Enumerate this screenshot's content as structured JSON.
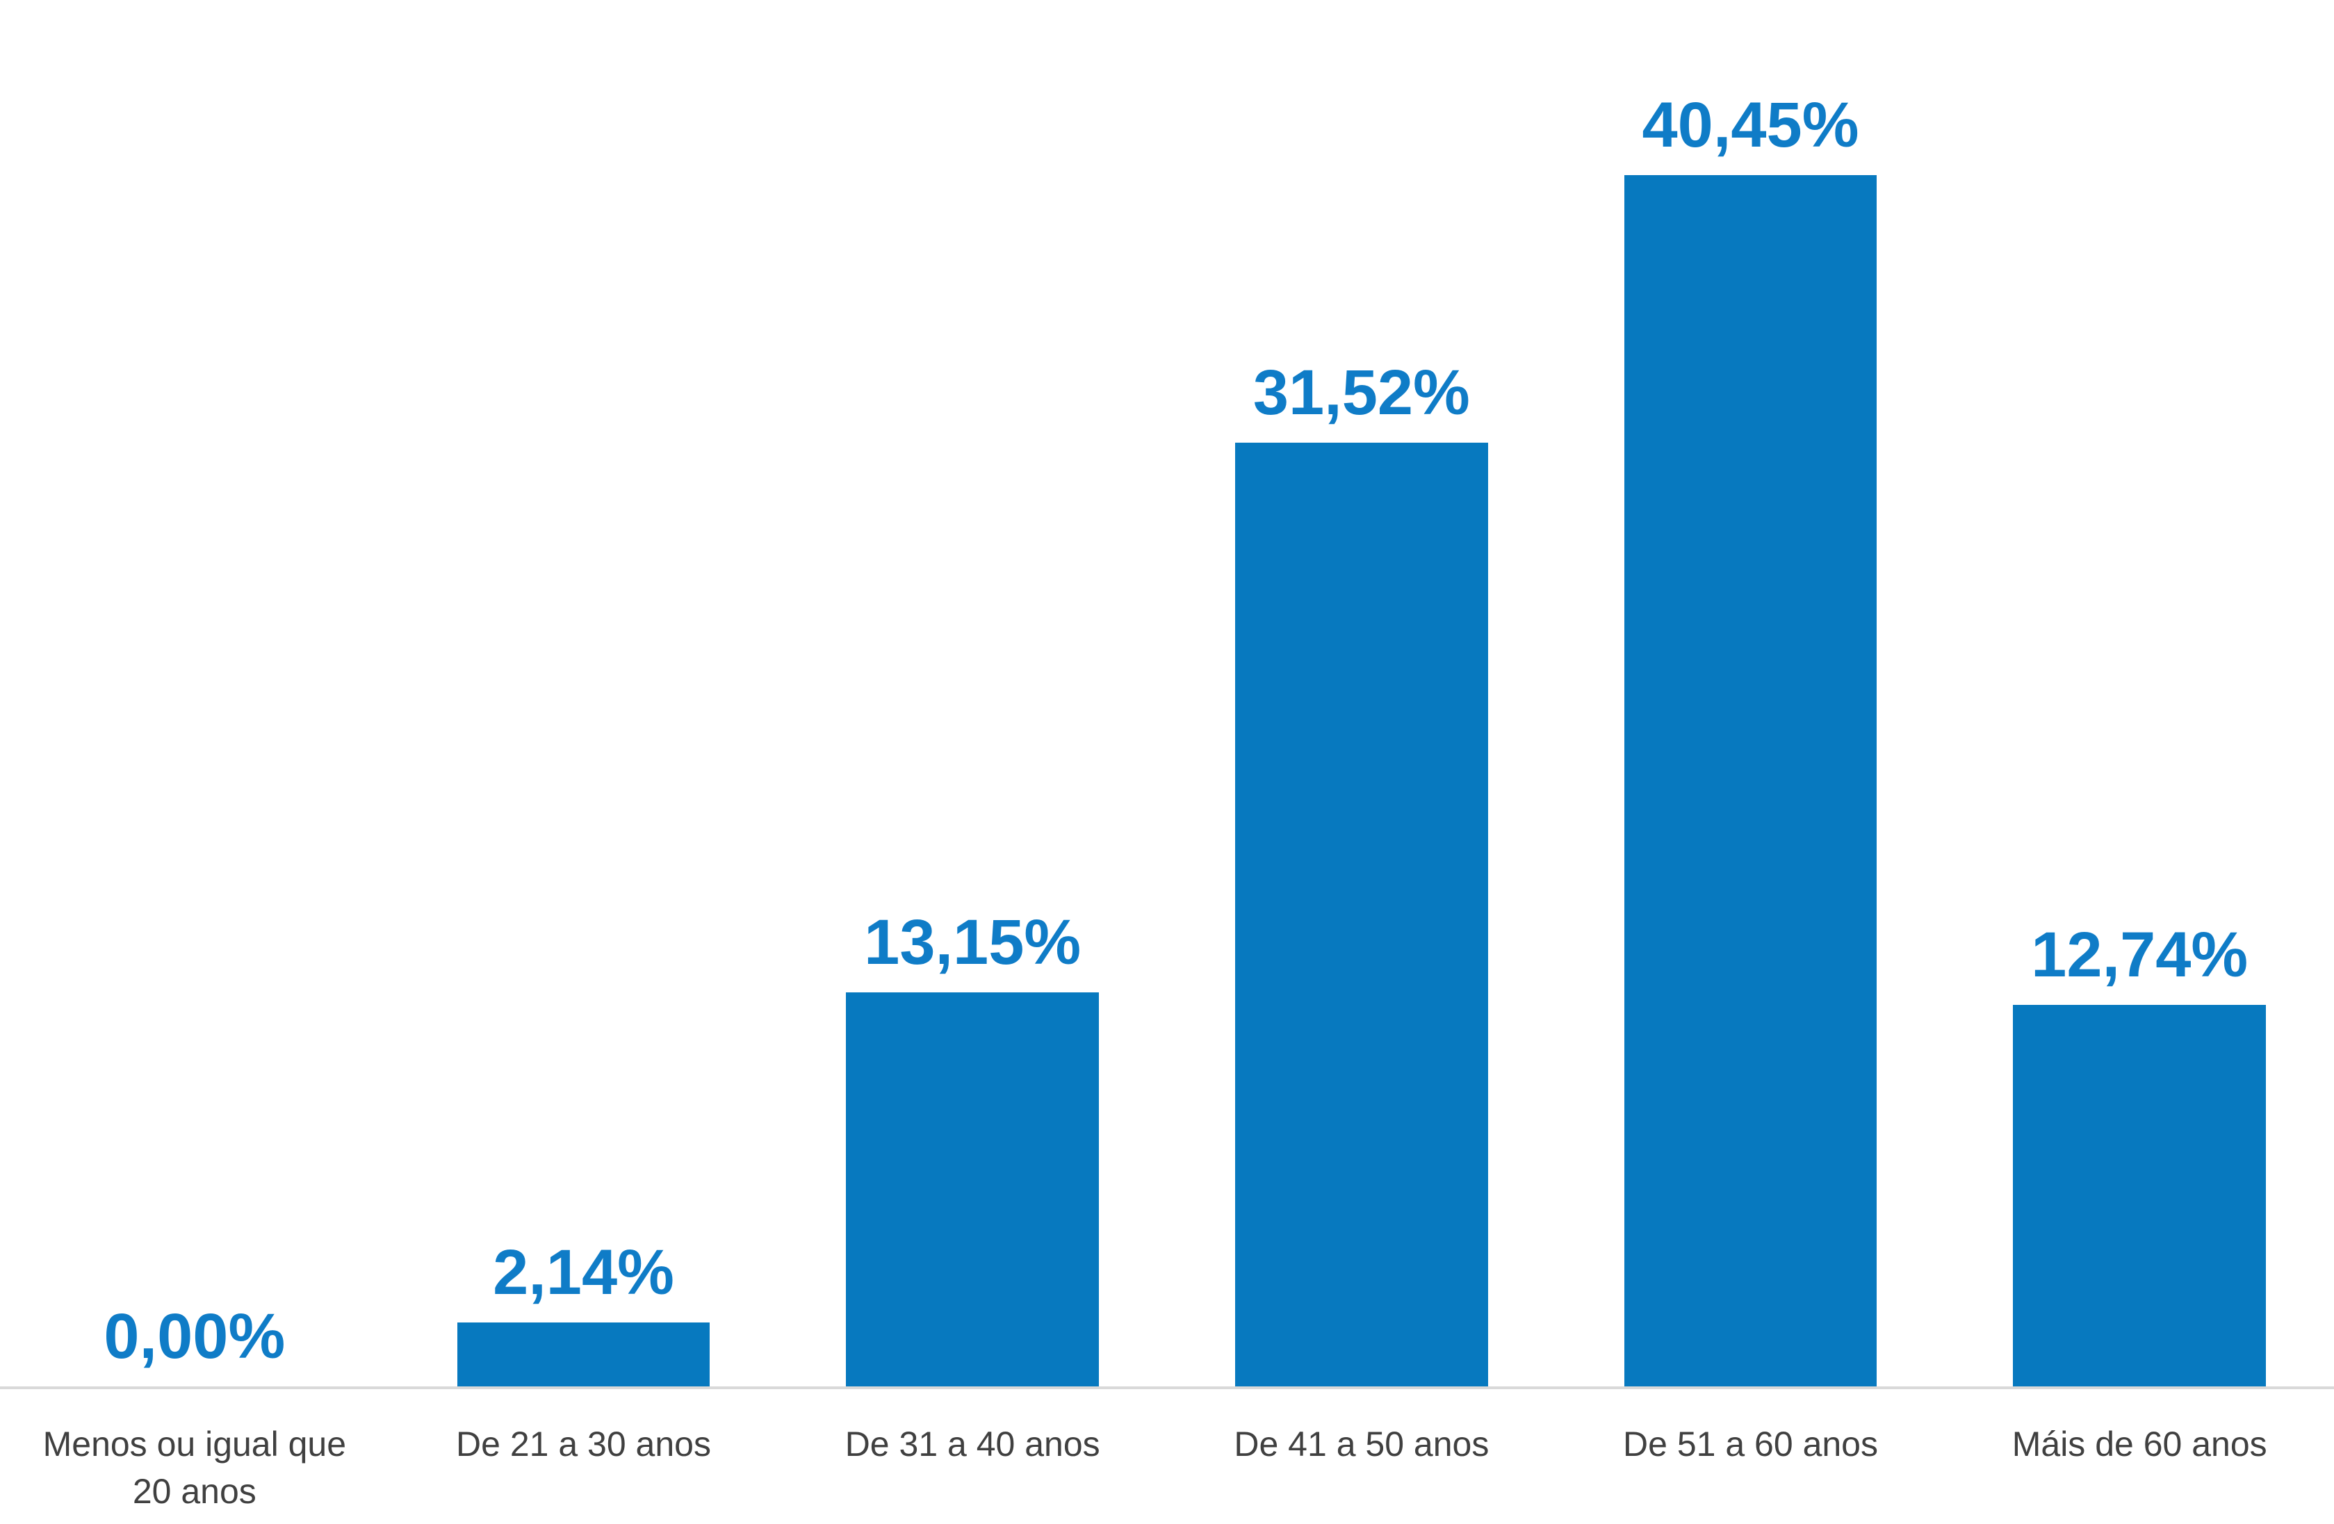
{
  "chart_data": {
    "type": "bar",
    "title": "",
    "xlabel": "",
    "ylabel": "",
    "categories": [
      "Menos ou igual que 20 anos",
      "De 21 a 30 anos",
      "De 31 a 40 anos",
      "De 41 a 50 anos",
      "De 51 a 60 anos",
      "Máis de 60 anos"
    ],
    "values": [
      0,
      2.14,
      13.15,
      31.52,
      40.45,
      12.74
    ],
    "display_values": [
      "0,00%",
      "2,14%",
      "13,15%",
      "31,52%",
      "40,45%",
      "12,74%"
    ],
    "value_label_position": "above-bar",
    "ylim": [
      0,
      46.3
    ],
    "grid": false,
    "legend": false,
    "colors": {
      "bar": "#0779BF",
      "value_label": "#0F7CC7",
      "category_label": "#404040",
      "axis_line": "#D9D9D9",
      "background": "#FFFFFF"
    }
  }
}
